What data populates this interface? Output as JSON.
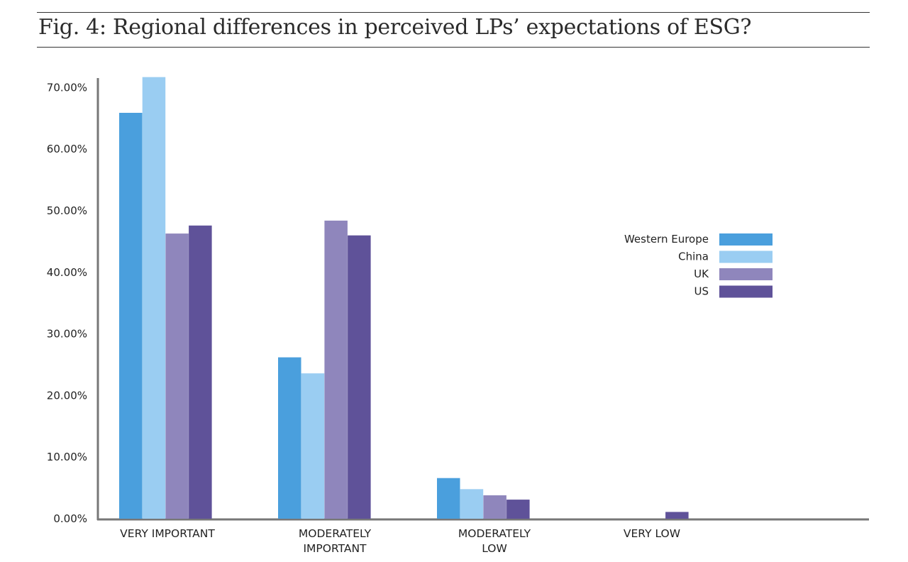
{
  "figure": {
    "title": "Fig. 4: Regional differences in perceived LPs’ expectations of ESG?"
  },
  "chart_data": {
    "type": "bar",
    "title": "Fig. 4: Regional differences in perceived LPs’ expectations of ESG?",
    "xlabel": "",
    "ylabel": "",
    "categories": [
      [
        "VERY IMPORTANT"
      ],
      [
        "MODERATELY",
        "IMPORTANT"
      ],
      [
        "MODERATELY",
        "LOW"
      ],
      [
        "VERY LOW"
      ]
    ],
    "series": [
      {
        "name": "Western Europe",
        "color": "#4a9fdd",
        "values": [
          65.9,
          26.2,
          6.6,
          0
        ]
      },
      {
        "name": "China",
        "color": "#9acdf2",
        "values": [
          71.7,
          23.6,
          4.8,
          0
        ]
      },
      {
        "name": "UK",
        "color": "#8f86bc",
        "values": [
          46.3,
          48.4,
          3.8,
          0
        ]
      },
      {
        "name": "US",
        "color": "#5f5299",
        "values": [
          47.6,
          46.0,
          3.1,
          1.1
        ]
      }
    ],
    "yticks": [
      "0.00%",
      "10.00%",
      "20.00%",
      "30.00%",
      "40.00%",
      "50.00%",
      "60.00%",
      "70.00%"
    ],
    "ylim": [
      0,
      72
    ],
    "grid": false,
    "legend_position": "right"
  }
}
